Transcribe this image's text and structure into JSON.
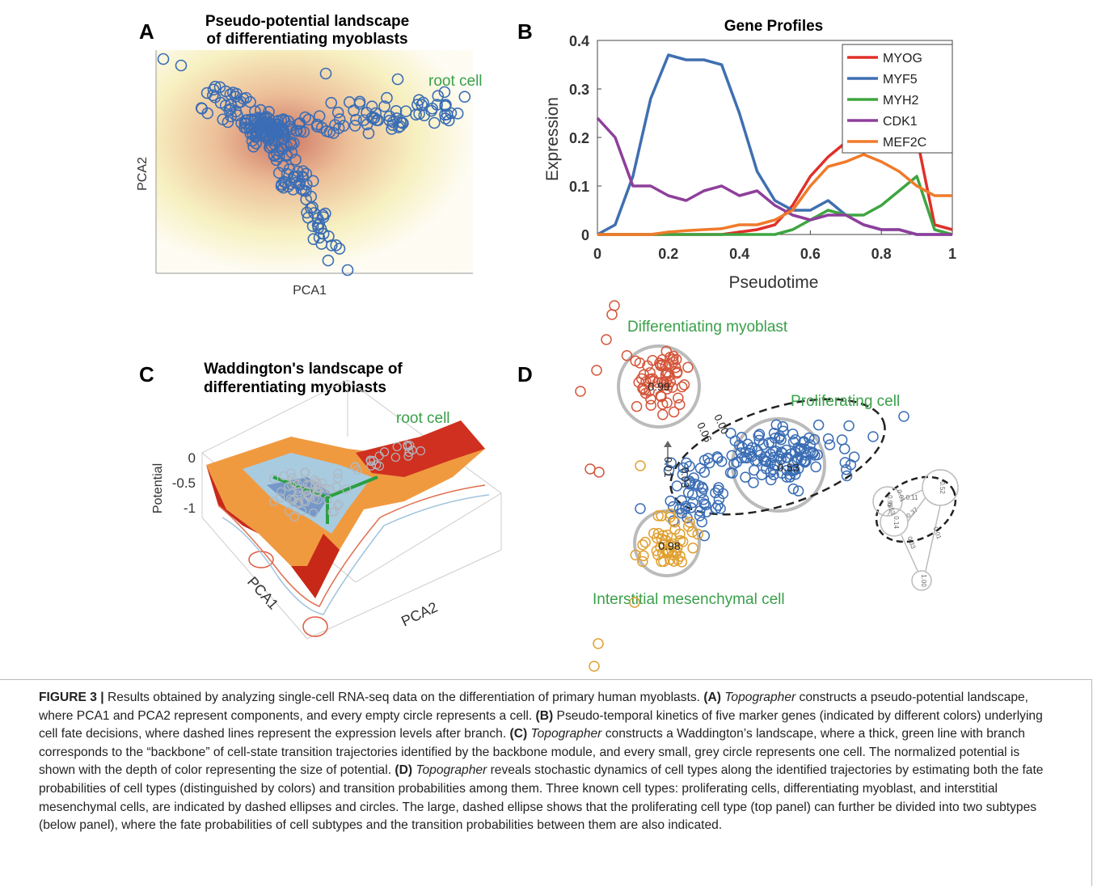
{
  "panels": {
    "a": {
      "letter": "A",
      "title": [
        "Pseudo-potential landscape",
        "of differentiating myoblasts"
      ],
      "xlabel": "PCA1",
      "ylabel": "PCA2",
      "annotation": "root cell"
    },
    "c": {
      "letter": "C",
      "title": [
        "Waddington's landscape of",
        "differentiating myoblasts"
      ],
      "annotation": "root cell",
      "zlabel": "Potential",
      "zticks": [
        "0",
        "-0.5",
        "-1"
      ],
      "xlabel": "PCA1",
      "ylabel": "PCA2"
    },
    "d": {
      "letter": "D",
      "labels": [
        "Differentiating myoblast",
        "Proliferating cell",
        "Interstitial mesenchymal cell"
      ],
      "probabilities": [
        "0.99",
        "0.53",
        "0.98"
      ],
      "arrows": [
        "0.01",
        "0.03",
        "0.06",
        "0.00"
      ],
      "inset": [
        "0.99",
        "0.52",
        "0.14",
        "1.00",
        "0.01",
        "0.11",
        "0.53",
        "0.37",
        "0.01",
        "0.33"
      ]
    }
  },
  "chart_data": {
    "type": "line",
    "letter": "B",
    "title": "Gene Profiles",
    "xlabel": "Pseudotime",
    "ylabel": "Expression",
    "x": [
      0,
      0.05,
      0.1,
      0.15,
      0.2,
      0.25,
      0.3,
      0.35,
      0.4,
      0.45,
      0.5,
      0.55,
      0.6,
      0.65,
      0.7,
      0.75,
      0.8,
      0.85,
      0.9,
      0.95,
      1
    ],
    "series": [
      {
        "name": "MYOG",
        "color": "#e0302a",
        "values": [
          0,
          0,
          0,
          0,
          0,
          0,
          0,
          0,
          0.005,
          0.01,
          0.02,
          0.06,
          0.12,
          0.16,
          0.19,
          0.21,
          0.22,
          0.22,
          0.2,
          0.02,
          0.01
        ]
      },
      {
        "name": "MYF5",
        "color": "#3f6fb0",
        "values": [
          0,
          0.02,
          0.12,
          0.28,
          0.37,
          0.36,
          0.36,
          0.35,
          0.25,
          0.13,
          0.07,
          0.05,
          0.05,
          0.07,
          0.04,
          0.02,
          0.01,
          0.01,
          0,
          0,
          0
        ]
      },
      {
        "name": "MYH2",
        "color": "#3ea540",
        "values": [
          0,
          0,
          0,
          0,
          0,
          0,
          0,
          0,
          0,
          0,
          0,
          0.01,
          0.03,
          0.05,
          0.04,
          0.04,
          0.06,
          0.09,
          0.12,
          0.01,
          0
        ]
      },
      {
        "name": "CDK1",
        "color": "#8e3f9b",
        "values": [
          0.24,
          0.2,
          0.1,
          0.1,
          0.08,
          0.07,
          0.09,
          0.1,
          0.08,
          0.09,
          0.06,
          0.04,
          0.03,
          0.04,
          0.04,
          0.02,
          0.01,
          0.01,
          0,
          0,
          0
        ]
      },
      {
        "name": "MEF2C",
        "color": "#f07a2a",
        "values": [
          0,
          0,
          0,
          0,
          0.005,
          0.008,
          0.01,
          0.012,
          0.02,
          0.02,
          0.03,
          0.05,
          0.1,
          0.14,
          0.15,
          0.165,
          0.15,
          0.13,
          0.1,
          0.08,
          0.08
        ]
      }
    ],
    "xlim": [
      0,
      1
    ],
    "xticks": [
      0,
      0.2,
      0.4,
      0.6,
      0.8,
      1
    ],
    "ylim": [
      0,
      0.4
    ],
    "yticks": [
      0,
      0.1,
      0.2,
      0.3,
      0.4
    ],
    "legend": "upper right"
  },
  "caption": [
    "FIGURE 3 |",
    "Results obtained by analyzing single-cell RNA-seq data on the differentiation of primary human myoblasts.",
    "(A)",
    "Topographer",
    "constructs a pseudo-potential landscape, where PCA1 and PCA2 represent components, and every empty circle represents a cell.",
    "(B)",
    "Pseudo-temporal kinetics of five marker genes (indicated by different colors) underlying cell fate decisions, where dashed lines represent the expression levels after branch.",
    "(C)",
    "Topographer",
    "constructs a Waddington’s landscape, where a thick, green line with branch corresponds to the “backbone” of cell-state transition trajectories identified by the backbone module, and every small, grey circle represents one cell. The normalized potential is shown with the depth of color representing the size of potential.",
    "(D)",
    "Topographer",
    "reveals stochastic dynamics of cell types along the identified trajectories by estimating both the fate probabilities of cell types (distinguished by colors) and transition probabilities among them. Three known cell types: proliferating cells, differentiating myoblast, and interstitial mesenchymal cells, are indicated by dashed ellipses and circles. The large, dashed ellipse shows that the proliferating cell type (top panel) can further be divided into two subtypes (below panel), where the fate probabilities of cell subtypes and the transition probabilities between them are also indicated."
  ]
}
